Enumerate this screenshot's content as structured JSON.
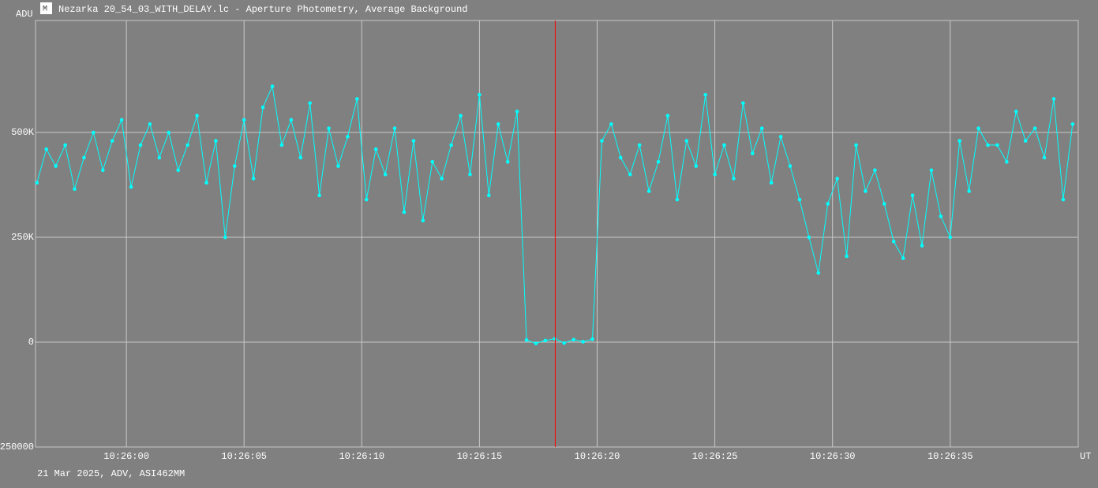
{
  "chart_data": {
    "type": "line",
    "title": "Nezarka 20_54_03_WITH_DELAY.lc - Aperture Photometry, Average Background",
    "ylabel": "ADU",
    "xlabel": "UT",
    "footer": "21 Mar 2025, ADV, ASI462MM",
    "color": "#00ffff",
    "cursor_color": "#ff0000",
    "cursor_x": 37578.22,
    "grid": true,
    "xlim": [
      37556.14,
      37600.44
    ],
    "ylim": [
      -250000,
      767000
    ],
    "yticks": [
      -250000,
      0,
      {
        "value": 250000,
        "label": "250K"
      },
      {
        "value": 500000,
        "label": "500K"
      }
    ],
    "xticks": [
      {
        "value": 37560,
        "label": "10:26:00"
      },
      {
        "value": 37565,
        "label": "10:26:05"
      },
      {
        "value": 37570,
        "label": "10:26:10"
      },
      {
        "value": 37575,
        "label": "10:26:15"
      },
      {
        "value": 37580,
        "label": "10:26:20"
      },
      {
        "value": 37585,
        "label": "10:26:25"
      },
      {
        "value": 37590,
        "label": "10:26:30"
      },
      {
        "value": 37595,
        "label": "10:26:35"
      }
    ],
    "x": [
      37556.2,
      37556.6,
      37557.0,
      37557.4,
      37557.8,
      37558.2,
      37558.6,
      37559.0,
      37559.4,
      37559.8,
      37560.2,
      37560.6,
      37561.0,
      37561.4,
      37561.8,
      37562.2,
      37562.6,
      37563.0,
      37563.4,
      37563.8,
      37564.2,
      37564.6,
      37565.0,
      37565.4,
      37565.8,
      37566.2,
      37566.6,
      37567.0,
      37567.4,
      37567.8,
      37568.2,
      37568.6,
      37569.0,
      37569.4,
      37569.8,
      37570.2,
      37570.6,
      37571.0,
      37571.4,
      37571.8,
      37572.2,
      37572.6,
      37573.0,
      37573.4,
      37573.8,
      37574.2,
      37574.6,
      37575.0,
      37575.4,
      37575.8,
      37576.2,
      37576.6,
      37577.0,
      37577.4,
      37577.8,
      37578.2,
      37578.6,
      37579.0,
      37579.4,
      37579.8,
      37580.2,
      37580.6,
      37581.0,
      37581.4,
      37581.8,
      37582.2,
      37582.6,
      37583.0,
      37583.4,
      37583.8,
      37584.2,
      37584.6,
      37585.0,
      37585.4,
      37585.8,
      37586.2,
      37586.6,
      37587.0,
      37587.4,
      37587.8,
      37588.2,
      37588.6,
      37589.0,
      37589.4,
      37589.8,
      37590.2,
      37590.6,
      37591.0,
      37591.4,
      37591.8,
      37592.2,
      37592.6,
      37593.0,
      37593.4,
      37593.8,
      37594.2,
      37594.6,
      37595.0,
      37595.4,
      37595.8,
      37596.2,
      37596.6,
      37597.0,
      37597.4,
      37597.8,
      37598.2,
      37598.6,
      37599.0,
      37599.4,
      37599.8,
      37600.2
    ],
    "values": [
      380000,
      460000,
      420000,
      470000,
      365000,
      440000,
      500000,
      410000,
      480000,
      530000,
      370000,
      470000,
      520000,
      440000,
      500000,
      410000,
      470000,
      540000,
      380000,
      480000,
      250000,
      420000,
      530000,
      390000,
      560000,
      610000,
      470000,
      530000,
      440000,
      570000,
      350000,
      510000,
      420000,
      490000,
      580000,
      340000,
      460000,
      400000,
      510000,
      310000,
      480000,
      290000,
      430000,
      390000,
      470000,
      540000,
      400000,
      590000,
      350000,
      520000,
      430000,
      550000,
      5000,
      -3000,
      4000,
      8000,
      -2000,
      6000,
      1000,
      7000,
      480000,
      520000,
      440000,
      400000,
      470000,
      360000,
      430000,
      540000,
      340000,
      480000,
      420000,
      590000,
      400000,
      470000,
      390000,
      570000,
      450000,
      510000,
      380000,
      490000,
      420000,
      340000,
      250000,
      165000,
      330000,
      390000,
      205000,
      470000,
      360000,
      410000,
      330000,
      240000,
      200000,
      350000,
      230000,
      410000,
      300000,
      250000,
      480000,
      360000,
      510000,
      470000,
      470000,
      430000,
      550000,
      480000,
      510000,
      440000,
      580000,
      340000,
      520000
    ]
  }
}
